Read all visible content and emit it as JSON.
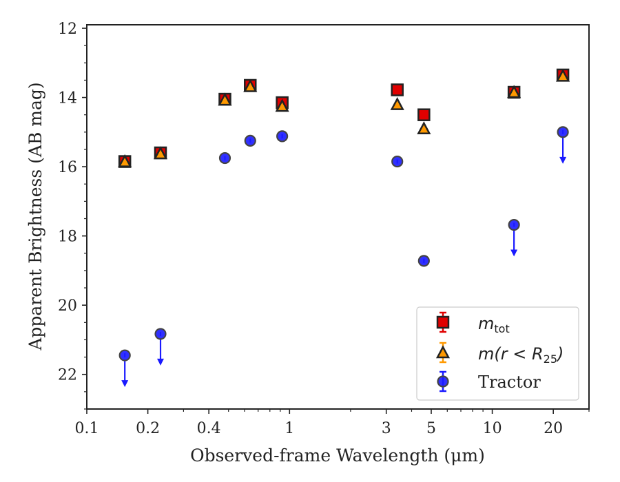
{
  "chart_data": {
    "type": "scatter",
    "xlabel": "Observed-frame Wavelength (μm)",
    "ylabel": "Apparent Brightness (AB mag)",
    "x_scale": "log",
    "y_inverted": true,
    "xlim": [
      0.1,
      30
    ],
    "ylim": [
      23,
      11.9
    ],
    "x_ticks": [
      0.1,
      0.2,
      0.4,
      1,
      3,
      5,
      10,
      20
    ],
    "x_tick_labels": [
      "0.1",
      "0.2",
      "0.4",
      "1",
      "3",
      "5",
      "10",
      "20"
    ],
    "y_ticks": [
      12,
      14,
      16,
      18,
      20,
      22
    ],
    "y_tick_labels": [
      "12",
      "14",
      "16",
      "18",
      "20",
      "22"
    ],
    "grid": false,
    "legend_position": "bottom-right",
    "series": [
      {
        "name": "m_tot",
        "marker": "square",
        "color": "#e00000",
        "points": [
          {
            "x": 0.154,
            "y": 15.85
          },
          {
            "x": 0.231,
            "y": 15.6
          },
          {
            "x": 0.48,
            "y": 14.05
          },
          {
            "x": 0.64,
            "y": 13.65
          },
          {
            "x": 0.92,
            "y": 14.15
          },
          {
            "x": 3.4,
            "y": 13.78
          },
          {
            "x": 4.6,
            "y": 14.5
          },
          {
            "x": 12.8,
            "y": 13.85
          },
          {
            "x": 22.3,
            "y": 13.35
          }
        ]
      },
      {
        "name": "m(r < R_25)",
        "marker": "triangle",
        "color": "#ff9900",
        "points": [
          {
            "x": 0.154,
            "y": 15.85
          },
          {
            "x": 0.231,
            "y": 15.62
          },
          {
            "x": 0.48,
            "y": 14.07
          },
          {
            "x": 0.64,
            "y": 13.68
          },
          {
            "x": 0.92,
            "y": 14.25
          },
          {
            "x": 3.4,
            "y": 14.2
          },
          {
            "x": 4.6,
            "y": 14.9
          },
          {
            "x": 12.8,
            "y": 13.85
          },
          {
            "x": 22.3,
            "y": 13.38
          }
        ]
      },
      {
        "name": "Tractor",
        "marker": "circle",
        "color": "#1a1aff",
        "points": [
          {
            "x": 0.154,
            "y": 21.45,
            "upper_limit": true
          },
          {
            "x": 0.231,
            "y": 20.83,
            "upper_limit": true
          },
          {
            "x": 0.48,
            "y": 15.75
          },
          {
            "x": 0.64,
            "y": 15.25
          },
          {
            "x": 0.92,
            "y": 15.12
          },
          {
            "x": 3.4,
            "y": 15.85
          },
          {
            "x": 4.6,
            "y": 18.72
          },
          {
            "x": 12.8,
            "y": 17.68,
            "upper_limit": true
          },
          {
            "x": 22.3,
            "y": 15.0,
            "upper_limit": true
          }
        ]
      }
    ],
    "legend": {
      "m_tot": {
        "base": "m",
        "sub": "tot"
      },
      "m_r25": {
        "prefix": "m(r < R",
        "sub": "25",
        "suffix": ")"
      },
      "tractor": "Tractor"
    }
  }
}
